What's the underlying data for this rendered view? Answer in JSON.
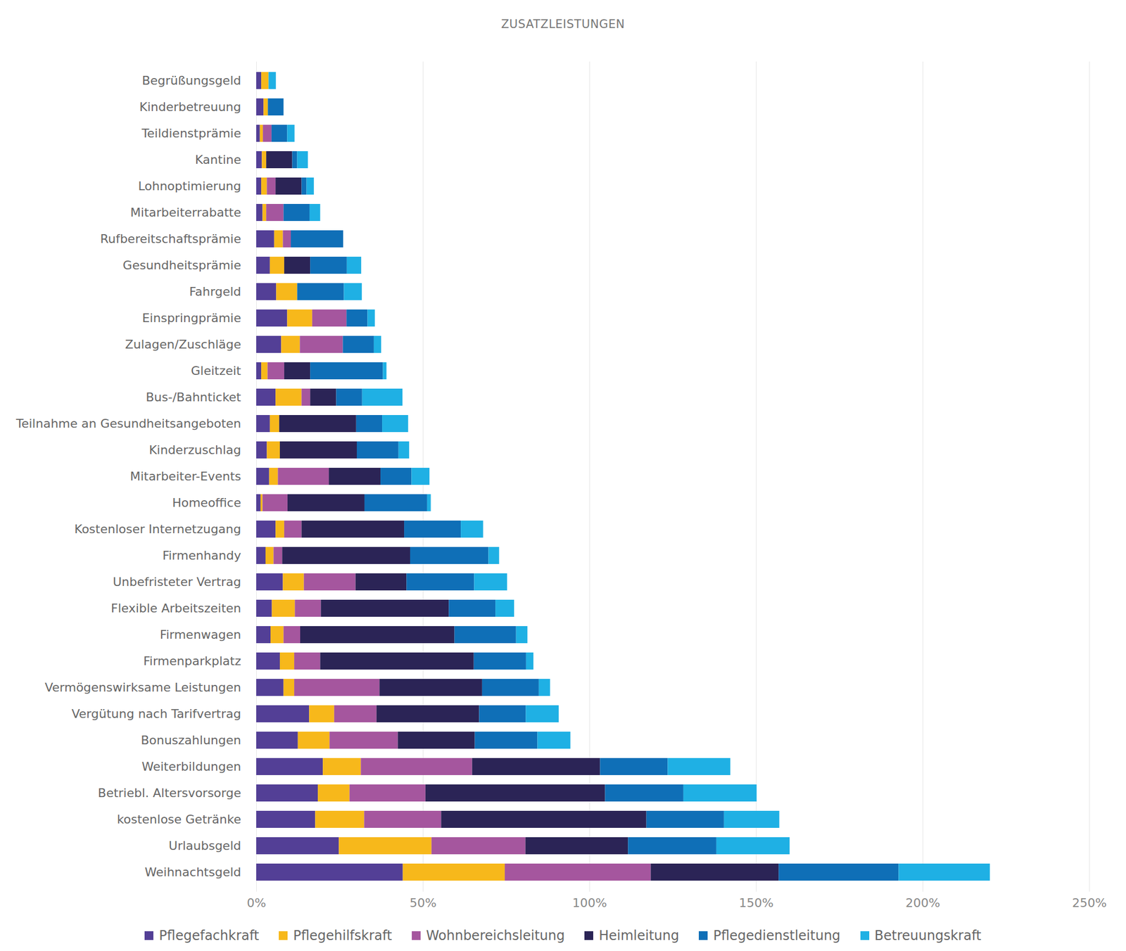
{
  "chart_data": {
    "type": "bar",
    "title": "ZUSATZLEISTUNGEN",
    "orientation": "horizontal",
    "stacked": true,
    "grid": true,
    "legend": "bottom",
    "categories": [
      "Begrüßungsgeld",
      "Kinderbetreuung",
      "Teildienstprämie",
      "Kantine",
      "Lohnoptimierung",
      "Mitarbeiterrabatte",
      "Rufbereitschaftsprämie",
      "Gesundheitsprämie",
      "Fahrgeld",
      "Einspringprämie",
      "Zulagen/Zuschläge",
      "Gleitzeit",
      "Bus-/Bahnticket",
      "Teilnahme an Gesundheitsangeboten",
      "Kinderzuschlag",
      "Mitarbeiter-Events",
      "Homeoffice",
      "Kostenloser Internetzugang",
      "Firmenhandy",
      "Unbefristeter Vertrag",
      "Flexible Arbeitszeiten",
      "Firmenwagen",
      "Firmenparkplatz",
      "Vermögenswirksame Leistungen",
      "Vergütung nach Tarifvertrag",
      "Bonuszahlungen",
      "Weiterbildungen",
      "Betriebl. Altersvorsorge",
      "kostenlose Getränke",
      "Urlaubsgeld",
      "Weihnachtsgeld"
    ],
    "series": [
      {
        "name": "Pflegefachkraft",
        "color": "#533f96",
        "values": [
          1.5,
          2.2,
          1.1,
          1.7,
          1.5,
          1.9,
          5.4,
          4.1,
          6.0,
          9.3,
          7.5,
          1.5,
          5.8,
          4.1,
          3.2,
          3.9,
          1.3,
          5.8,
          2.8,
          8.0,
          4.7,
          4.3,
          7.1,
          8.2,
          15.9,
          12.5,
          20.0,
          18.5,
          17.7,
          24.8,
          44.0
        ]
      },
      {
        "name": "Pflegehilfskraft",
        "color": "#f7b81b",
        "values": [
          2.2,
          1.3,
          0.9,
          1.3,
          1.7,
          1.1,
          2.6,
          4.3,
          6.3,
          7.5,
          5.6,
          1.9,
          7.8,
          2.8,
          3.9,
          2.6,
          0.6,
          2.6,
          2.4,
          6.3,
          6.9,
          3.9,
          4.3,
          3.2,
          7.5,
          9.5,
          11.4,
          9.5,
          14.7,
          27.8,
          30.6
        ]
      },
      {
        "name": "Wohnbereichsleitung",
        "color": "#a5569e",
        "values": [
          0,
          0,
          2.6,
          0,
          2.6,
          5.2,
          2.4,
          0,
          0,
          10.3,
          12.9,
          5.0,
          2.6,
          0,
          0,
          15.3,
          7.5,
          5.2,
          2.6,
          15.5,
          7.8,
          5.0,
          7.8,
          25.6,
          12.7,
          20.5,
          33.4,
          22.8,
          23.1,
          28.2,
          43.8
        ]
      },
      {
        "name": "Heimleitung",
        "color": "#2b2456",
        "values": [
          0,
          0,
          0,
          7.8,
          7.8,
          0,
          0,
          7.8,
          0,
          0,
          0,
          7.8,
          7.8,
          23.1,
          23.1,
          15.5,
          23.1,
          30.8,
          38.4,
          15.3,
          38.4,
          46.3,
          46.1,
          30.8,
          30.8,
          23.1,
          38.4,
          53.9,
          61.6,
          30.8,
          38.4
        ]
      },
      {
        "name": "Pflegedienstleitung",
        "color": "#0f6fb7",
        "values": [
          0,
          4.7,
          4.7,
          1.5,
          1.5,
          7.8,
          15.7,
          11.0,
          14.0,
          6.3,
          9.3,
          21.8,
          7.8,
          7.8,
          12.5,
          9.3,
          18.8,
          17.0,
          23.5,
          20.3,
          14.0,
          18.5,
          15.7,
          17.0,
          14.0,
          18.8,
          20.3,
          23.5,
          23.3,
          26.5,
          36.0
        ]
      },
      {
        "name": "Betreuungskraft",
        "color": "#1fb0e4",
        "values": [
          2.2,
          0,
          2.2,
          3.2,
          2.2,
          3.2,
          0,
          4.3,
          5.4,
          2.2,
          2.2,
          1.1,
          12.1,
          7.8,
          3.2,
          5.4,
          1.1,
          6.7,
          3.2,
          9.9,
          5.6,
          3.4,
          2.2,
          3.4,
          9.9,
          9.9,
          18.8,
          22.0,
          16.6,
          22.0,
          27.4
        ]
      }
    ],
    "xlim": [
      0,
      250
    ],
    "xticks": [
      {
        "value": 0,
        "label": "0%"
      },
      {
        "value": 50,
        "label": "50%"
      },
      {
        "value": 100,
        "label": "100%"
      },
      {
        "value": 150,
        "label": "150%"
      },
      {
        "value": 200,
        "label": "200%"
      },
      {
        "value": 250,
        "label": "250%"
      }
    ]
  }
}
